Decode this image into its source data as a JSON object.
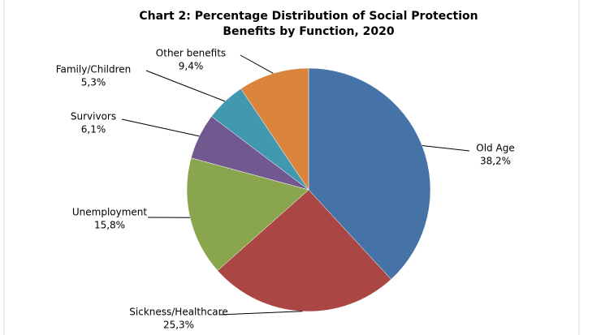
{
  "chart_data": {
    "type": "pie",
    "title": [
      "Chart 2: Percentage Distribution of Social Protection",
      "Benefits by Function, 2020"
    ],
    "categories": [
      "Old Age",
      "Sickness/Healthcare",
      "Unemployment",
      "Survivors",
      "Family/Children",
      "Other benefits"
    ],
    "values": [
      38.2,
      25.3,
      15.8,
      6.1,
      5.3,
      9.4
    ],
    "value_labels": [
      "38,2%",
      "25,3%",
      "15,8%",
      "6,1%",
      "5,3%",
      "9,4%"
    ],
    "colors": [
      "#4572a7",
      "#aa4643",
      "#89a54e",
      "#71588f",
      "#4198af",
      "#db843d"
    ]
  }
}
